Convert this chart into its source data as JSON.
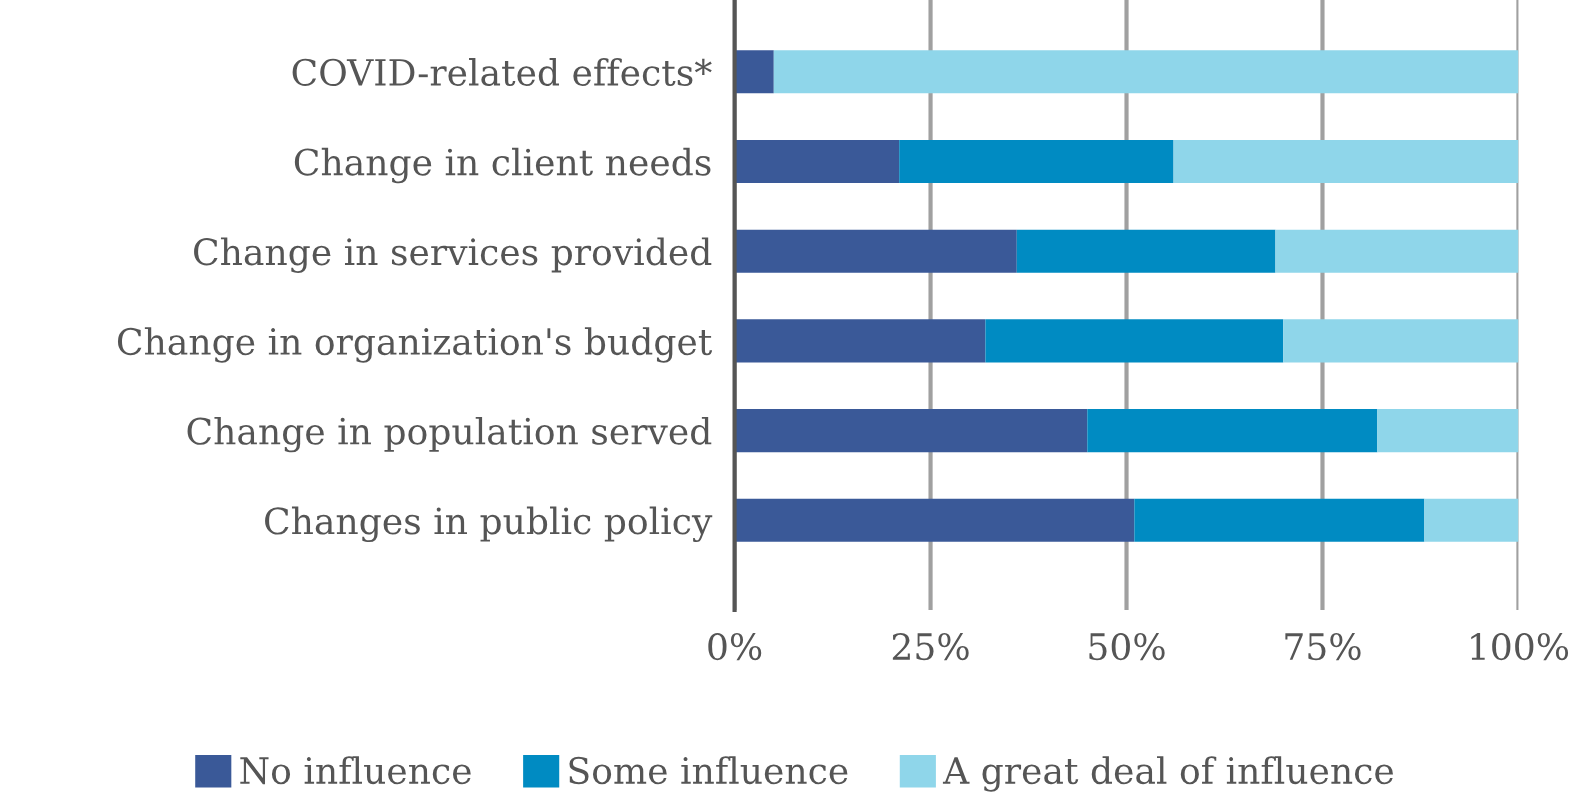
{
  "chart_data": {
    "type": "bar",
    "orientation": "horizontal",
    "stacked": true,
    "categories": [
      "COVID-related effects*",
      "Change in client needs",
      "Change in services provided",
      "Change in organization's budget",
      "Change in population served",
      "Changes in public policy"
    ],
    "series": [
      {
        "name": "No influence",
        "color": "#3a5998",
        "values": [
          5,
          21,
          36,
          32,
          45,
          51
        ]
      },
      {
        "name": "Some influence",
        "color": "#008bc2",
        "values": [
          0,
          35,
          33,
          38,
          37,
          37
        ]
      },
      {
        "name": "A great deal of influence",
        "color": "#8fd6ea",
        "values": [
          95,
          44,
          31,
          30,
          18,
          12
        ]
      }
    ],
    "xlim": [
      0,
      100
    ],
    "xticks": [
      {
        "value": 0,
        "label": "0%"
      },
      {
        "value": 25,
        "label": "25%"
      },
      {
        "value": 50,
        "label": "50%"
      },
      {
        "value": 75,
        "label": "75%"
      },
      {
        "value": 100,
        "label": "100%"
      }
    ],
    "grid": "x",
    "legend": "bottom"
  }
}
